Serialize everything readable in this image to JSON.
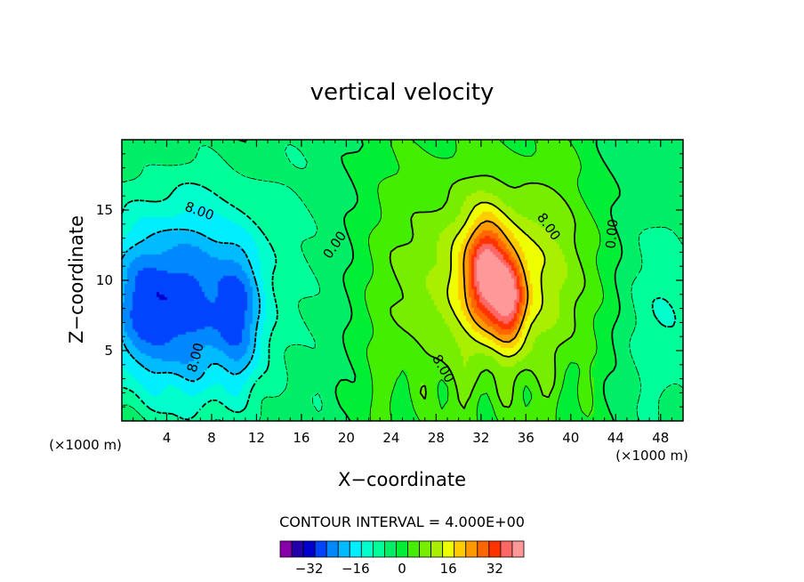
{
  "chart_data": {
    "type": "heatmap",
    "title": "vertical velocity",
    "xlabel": "X−coordinate",
    "ylabel": "Z−coordinate",
    "x_unit_left": "(×1000 m)",
    "x_unit_right": "(×1000 m)",
    "x_ticks": [
      4,
      8,
      12,
      16,
      20,
      24,
      28,
      32,
      36,
      40,
      44,
      48
    ],
    "y_ticks": [
      5,
      10,
      15
    ],
    "xlim": [
      0,
      50
    ],
    "ylim": [
      0,
      20
    ],
    "contour_interval_text": "CONTOUR INTERVAL = 4.000E+00",
    "contour_labels": [
      {
        "text": "8.00",
        "x": 6.9,
        "z": 14.9,
        "angle": 20
      },
      {
        "text": "0.00",
        "x": 19.0,
        "z": 12.5,
        "angle": -55
      },
      {
        "text": "8.00",
        "x": 38.0,
        "z": 13.8,
        "angle": 55
      },
      {
        "text": "0.00",
        "x": 43.7,
        "z": 13.3,
        "angle": -85
      },
      {
        "text": "8.00",
        "x": 6.6,
        "z": 4.5,
        "angle": -75
      },
      {
        "text": "8.00",
        "x": 28.6,
        "z": 3.7,
        "angle": 60
      }
    ],
    "colorbar": {
      "levels": [
        -40,
        -36,
        -32,
        -28,
        -24,
        -20,
        -16,
        -12,
        -8,
        -4,
        0,
        4,
        8,
        12,
        16,
        20,
        24,
        28,
        32,
        36,
        40
      ],
      "colors": [
        "#8800aa",
        "#2200aa",
        "#0000cc",
        "#0044ff",
        "#0088ff",
        "#00bbff",
        "#00eeff",
        "#00ffcc",
        "#00ff99",
        "#00ee66",
        "#00ee33",
        "#44ee00",
        "#77ee00",
        "#aaee00",
        "#eeff00",
        "#ffcc00",
        "#ff9900",
        "#ff6600",
        "#ff3300",
        "#ff6666",
        "#ff9999"
      ],
      "tick_labels": [
        {
          "value": -32,
          "text": "−32"
        },
        {
          "value": -16,
          "text": "−16"
        },
        {
          "value": 0,
          "text": "0"
        },
        {
          "value": 16,
          "text": "16"
        },
        {
          "value": 32,
          "text": "32"
        }
      ]
    },
    "field_features": [
      {
        "kind": "updraft",
        "x": 32.5,
        "z": 10.5,
        "peak": 26,
        "sx": 1.2,
        "sz": 2.6
      },
      {
        "kind": "updraft",
        "x": 34.5,
        "z": 8.5,
        "peak": 24,
        "sx": 1.0,
        "sz": 2.2
      },
      {
        "kind": "updraft",
        "x": 33.5,
        "z": 10.5,
        "peak": 12,
        "sx": 5,
        "sz": 4
      },
      {
        "kind": "updraft",
        "x": 31,
        "z": 9,
        "peak": 6,
        "sx": 10,
        "sz": 7
      },
      {
        "kind": "downdraft",
        "x": 6,
        "z": 8,
        "peak": -18,
        "sx": 3,
        "sz": 5
      },
      {
        "kind": "downdraft",
        "x": 10.5,
        "z": 7.5,
        "peak": -16,
        "sx": 1.5,
        "sz": 4
      },
      {
        "kind": "downdraft",
        "x": 1.5,
        "z": 8,
        "peak": -16,
        "sx": 2,
        "sz": 4
      },
      {
        "kind": "downdraft",
        "x": 7,
        "z": 10,
        "peak": -9,
        "sx": 9,
        "sz": 7
      },
      {
        "kind": "downdraft",
        "x": 49,
        "z": 8,
        "peak": -10,
        "sx": 3,
        "sz": 6
      }
    ]
  }
}
